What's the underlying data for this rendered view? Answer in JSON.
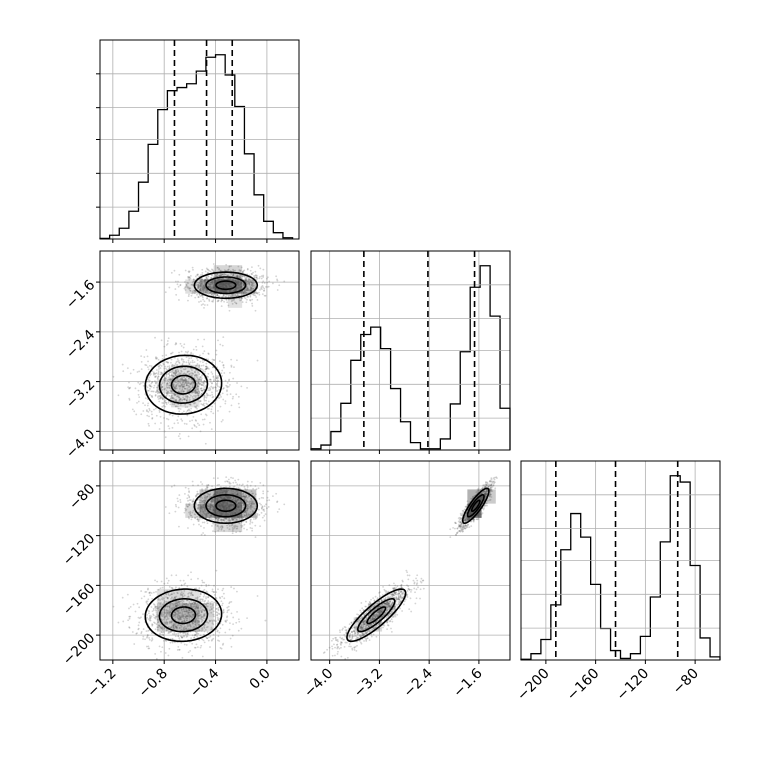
{
  "chart_data": {
    "type": "corner",
    "title": "",
    "parameters": [
      {
        "label": "",
        "range": [
          -1.3,
          0.25
        ],
        "ticks": [
          -1.2,
          -0.8,
          -0.4,
          0.0
        ],
        "tick_labels": [
          "−1.2",
          "−0.8",
          "−0.4",
          "0.0"
        ],
        "quantiles": [
          -0.72,
          -0.47,
          -0.27
        ],
        "histogram": {
          "bin_edges": [
            -1.3,
            -1.225,
            -1.15,
            -1.075,
            -1.0,
            -0.925,
            -0.85,
            -0.775,
            -0.7,
            -0.625,
            -0.55,
            -0.475,
            -0.4,
            -0.325,
            -0.25,
            -0.175,
            -0.1,
            -0.025,
            0.05,
            0.125,
            0.2
          ],
          "counts": [
            1,
            6,
            17,
            44,
            90,
            150,
            205,
            235,
            240,
            246,
            266,
            288,
            292,
            260,
            210,
            135,
            70,
            28,
            10,
            2
          ]
        }
      },
      {
        "label": "",
        "range": [
          -4.3,
          -1.1
        ],
        "ticks": [
          -4.0,
          -3.2,
          -2.4,
          -1.6
        ],
        "tick_labels": [
          "−4.0",
          "−3.2",
          "−2.4",
          "−1.6"
        ],
        "quantiles": [
          -3.45,
          -2.42,
          -1.67
        ],
        "histogram": {
          "bin_edges": [
            -4.3,
            -4.14,
            -3.98,
            -3.82,
            -3.66,
            -3.5,
            -3.34,
            -3.18,
            -3.02,
            -2.86,
            -2.7,
            -2.54,
            -2.38,
            -2.22,
            -2.06,
            -1.9,
            -1.74,
            -1.58,
            -1.42,
            -1.26,
            -1.1
          ],
          "counts": [
            2,
            8,
            30,
            76,
            146,
            188,
            200,
            165,
            100,
            46,
            12,
            2,
            2,
            18,
            75,
            160,
            265,
            300,
            218,
            68
          ]
        }
      },
      {
        "label": "",
        "range": [
          -220,
          -60
        ],
        "ticks": [
          -200,
          -160,
          -120,
          -80
        ],
        "tick_labels": [
          "−200",
          "−160",
          "−120",
          "−80"
        ],
        "quantiles": [
          -192,
          -144,
          -94
        ],
        "histogram": {
          "bin_edges": [
            -220,
            -212,
            -204,
            -196,
            -188,
            -180,
            -172,
            -164,
            -156,
            -148,
            -140,
            -132,
            -124,
            -116,
            -108,
            -100,
            -92,
            -84,
            -76,
            -68,
            -60
          ],
          "counts": [
            1,
            8,
            26,
            70,
            140,
            186,
            156,
            96,
            40,
            12,
            2,
            8,
            30,
            80,
            150,
            234,
            226,
            120,
            28,
            4
          ]
        }
      }
    ],
    "modes": [
      {
        "weight": 0.45,
        "mean": [
          -0.65,
          -3.25,
          -184
        ],
        "sd": [
          0.17,
          0.27,
          12
        ],
        "corr_12": 0.05,
        "corr_13": 0.05,
        "corr_23": 0.85
      },
      {
        "weight": 0.55,
        "mean": [
          -0.32,
          -1.65,
          -96
        ],
        "sd": [
          0.14,
          0.12,
          8
        ],
        "corr_12": 0.0,
        "corr_13": 0.0,
        "corr_23": 0.85
      }
    ],
    "grid": true,
    "legend": "none"
  }
}
